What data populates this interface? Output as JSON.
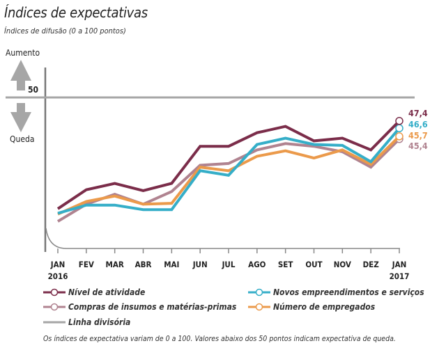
{
  "chart_data": {
    "type": "line",
    "title": "Índices de expectativas",
    "subtitle": "Índices de difusão (0 a 100 pontos)",
    "x": [
      "JAN",
      "FEV",
      "MAR",
      "ABR",
      "MAI",
      "JUN",
      "JUL",
      "AGO",
      "SET",
      "OUT",
      "NOV",
      "DEZ",
      "JAN"
    ],
    "x_years": {
      "first": "2016",
      "last": "2017"
    },
    "reference_line": {
      "value": 50,
      "label": "50",
      "name": "Linha divisória",
      "color": "#a6a6a6"
    },
    "direction_labels": {
      "up": "Aumento",
      "down": "Queda"
    },
    "y_range": [
      33.5,
      52.5
    ],
    "grid": false,
    "legend_position": "bottom",
    "series": [
      {
        "name": "Nível de atividade",
        "color": "#7b2d4a",
        "values": [
          37.7,
          39.8,
          40.5,
          39.7,
          40.5,
          44.6,
          44.6,
          46.1,
          46.8,
          45.2,
          45.5,
          44.2,
          47.4
        ],
        "end_label": "47,4"
      },
      {
        "name": "Novos empreendimentos e serviços",
        "color": "#35aec8",
        "values": [
          37.2,
          38.1,
          38.1,
          37.6,
          37.6,
          41.9,
          41.4,
          44.8,
          45.5,
          44.8,
          44.7,
          42.9,
          46.6
        ],
        "end_label": "46,6"
      },
      {
        "name": "Compras de insumos e matérias-primas",
        "color": "#b08390",
        "values": [
          36.3,
          38.2,
          39.3,
          38.2,
          39.6,
          42.5,
          42.7,
          44.2,
          44.9,
          44.6,
          44.0,
          42.3,
          45.4
        ],
        "end_label": "45,4"
      },
      {
        "name": "Número de empregados",
        "color": "#eb9a4b",
        "values": [
          37.1,
          38.5,
          39.1,
          38.2,
          38.3,
          42.3,
          41.9,
          43.5,
          44.1,
          43.3,
          44.2,
          42.6,
          45.7
        ],
        "end_label": "45,7"
      }
    ],
    "note": "Os índices de expectativa variam de 0 a 100. Valores abaixo dos 50 pontos indicam expectativa de queda."
  }
}
